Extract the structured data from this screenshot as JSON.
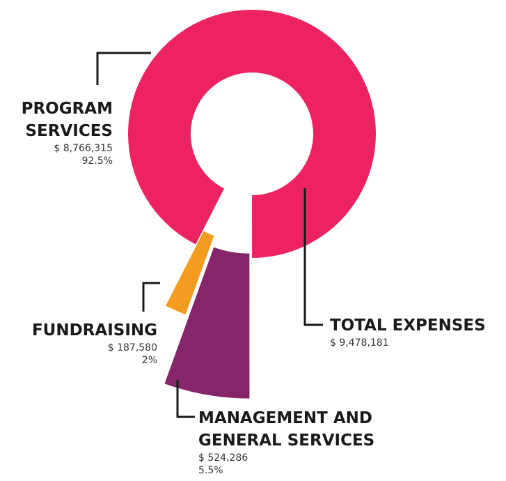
{
  "chart_data": {
    "type": "donut",
    "categories": [
      "PROGRAM SERVICES",
      "MANAGEMENT AND GENERAL SERVICES",
      "FUNDRAISING"
    ],
    "values": [
      8766315,
      524286,
      187580
    ],
    "value_labels": [
      "$ 8,766,315",
      "$ 524,286",
      "$ 187,580"
    ],
    "percents": [
      92.5,
      5.5,
      2
    ],
    "percent_labels": [
      "92.5%",
      "5.5%",
      "2%"
    ],
    "colors": [
      "#ec2360",
      "#85256a",
      "#f39c1f"
    ],
    "total": {
      "label": "TOTAL EXPENSES",
      "value": 9478181,
      "value_label": "$ 9,478,181"
    }
  }
}
